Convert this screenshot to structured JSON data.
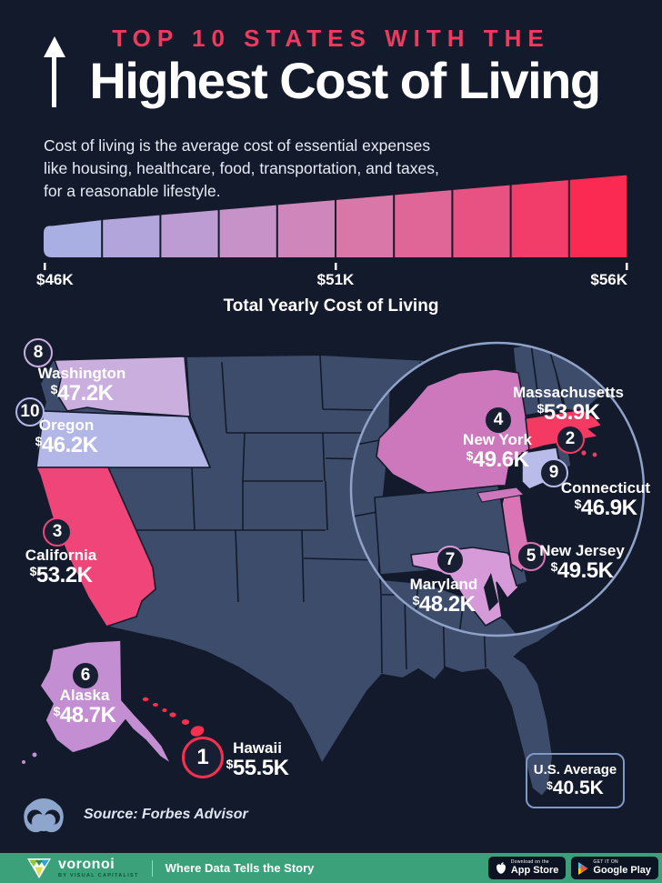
{
  "page": {
    "background": "#131a2b",
    "accent_red": "#ef3a5f",
    "state_base_color": "#3e4c6b"
  },
  "header": {
    "eyebrow": "TOP 10 STATES WITH THE",
    "title": "Highest Cost of Living",
    "arrow_icon": "up-arrow-icon"
  },
  "description": "Cost of living is the average cost of essential expenses like housing, healthcare, food, transportation, and taxes, for a reasonable lifestyle.",
  "chart_data": {
    "type": "choropleth-map",
    "title": "Top 10 States with the Highest Cost of Living",
    "scale": {
      "type": "gradient-wedge",
      "axis_label": "Total Yearly Cost of Living",
      "ticks": [
        "$46K",
        "$51K",
        "$56K"
      ],
      "range_usd": [
        46000,
        56000
      ],
      "segments": 10,
      "colors": [
        "#a9aee3",
        "#b2a5dc",
        "#bd9cd3",
        "#c792c7",
        "#cf86ba",
        "#d877a8",
        "#e06697",
        "#e85283",
        "#f23d6b",
        "#fa2a52"
      ]
    },
    "states": [
      {
        "rank": 1,
        "name": "Hawaii",
        "currency": "$",
        "value": "55.5K",
        "value_usd": 55500,
        "color": "#f8304f"
      },
      {
        "rank": 2,
        "name": "Massachusetts",
        "currency": "$",
        "value": "53.9K",
        "value_usd": 53900,
        "color": "#f43a62"
      },
      {
        "rank": 3,
        "name": "California",
        "currency": "$",
        "value": "53.2K",
        "value_usd": 53200,
        "color": "#ef4578"
      },
      {
        "rank": 4,
        "name": "New York",
        "currency": "$",
        "value": "49.6K",
        "value_usd": 49600,
        "color": "#cd78bd"
      },
      {
        "rank": 5,
        "name": "New Jersey",
        "currency": "$",
        "value": "49.5K",
        "value_usd": 49500,
        "color": "#da74b4"
      },
      {
        "rank": 6,
        "name": "Alaska",
        "currency": "$",
        "value": "48.7K",
        "value_usd": 48700,
        "color": "#c48fd2"
      },
      {
        "rank": 7,
        "name": "Maryland",
        "currency": "$",
        "value": "48.2K",
        "value_usd": 48200,
        "color": "#d79ad8"
      },
      {
        "rank": 8,
        "name": "Washington",
        "currency": "$",
        "value": "47.2K",
        "value_usd": 47200,
        "color": "#c9aede"
      },
      {
        "rank": 9,
        "name": "Connecticut",
        "currency": "$",
        "value": "46.9K",
        "value_usd": 46900,
        "color": "#b9bce9"
      },
      {
        "rank": 10,
        "name": "Oregon",
        "currency": "$",
        "value": "46.2K",
        "value_usd": 46200,
        "color": "#b2b7e8"
      }
    ],
    "us_average": {
      "label": "U.S. Average",
      "currency": "$",
      "value": "40.5K",
      "value_usd": 40500
    }
  },
  "source": {
    "text": "Source: Forbes Advisor",
    "icon": "voronoi-observatory-icon"
  },
  "footer": {
    "brand": "voronoi",
    "byline": "BY VISUAL CAPITALIST",
    "tagline": "Where Data Tells the Story",
    "appstore": {
      "line1": "Download on the",
      "line2": "App Store"
    },
    "googleplay": {
      "line1": "GET IT ON",
      "line2": "Google Play"
    }
  }
}
